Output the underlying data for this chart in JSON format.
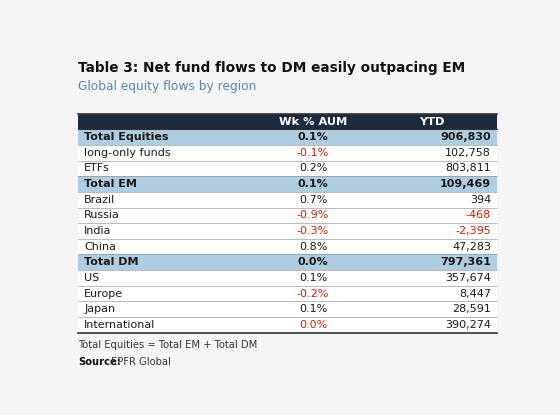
{
  "title_bold": "Table 3: ",
  "title_rest": "Net fund flows to DM easily outpacing EM",
  "subtitle": "Global equity flows by region",
  "footnote": "Total Equities = Total EM + Total DM",
  "source": "EPFR Global",
  "header": [
    "",
    "Wk % AUM",
    "YTD"
  ],
  "rows": [
    {
      "label": "Total Equities",
      "wk": "0.1%",
      "ytd": "906,830",
      "bold": true,
      "wk_red": false,
      "ytd_red": false,
      "intl_red": false
    },
    {
      "label": "long-only funds",
      "wk": "-0.1%",
      "ytd": "102,758",
      "bold": false,
      "wk_red": true,
      "ytd_red": false,
      "intl_red": false
    },
    {
      "label": "ETFs",
      "wk": "0.2%",
      "ytd": "803,811",
      "bold": false,
      "wk_red": false,
      "ytd_red": false,
      "intl_red": false
    },
    {
      "label": "Total EM",
      "wk": "0.1%",
      "ytd": "109,469",
      "bold": true,
      "wk_red": false,
      "ytd_red": false,
      "intl_red": false
    },
    {
      "label": "Brazil",
      "wk": "0.7%",
      "ytd": "394",
      "bold": false,
      "wk_red": false,
      "ytd_red": false,
      "intl_red": false
    },
    {
      "label": "Russia",
      "wk": "-0.9%",
      "ytd": "-468",
      "bold": false,
      "wk_red": true,
      "ytd_red": true,
      "intl_red": false
    },
    {
      "label": "India",
      "wk": "-0.3%",
      "ytd": "-2,395",
      "bold": false,
      "wk_red": true,
      "ytd_red": true,
      "intl_red": false
    },
    {
      "label": "China",
      "wk": "0.8%",
      "ytd": "47,283",
      "bold": false,
      "wk_red": false,
      "ytd_red": false,
      "intl_red": false
    },
    {
      "label": "Total DM",
      "wk": "0.0%",
      "ytd": "797,361",
      "bold": true,
      "wk_red": false,
      "ytd_red": false,
      "intl_red": false
    },
    {
      "label": "US",
      "wk": "0.1%",
      "ytd": "357,674",
      "bold": false,
      "wk_red": false,
      "ytd_red": false,
      "intl_red": false
    },
    {
      "label": "Europe",
      "wk": "-0.2%",
      "ytd": "8,447",
      "bold": false,
      "wk_red": true,
      "ytd_red": false,
      "intl_red": false
    },
    {
      "label": "Japan",
      "wk": "0.1%",
      "ytd": "28,591",
      "bold": false,
      "wk_red": false,
      "ytd_red": false,
      "intl_red": false
    },
    {
      "label": "International",
      "wk": "0.0%",
      "ytd": "390,274",
      "bold": false,
      "wk_red": true,
      "ytd_red": false,
      "intl_red": false
    }
  ],
  "header_bg": "#1b2a3c",
  "header_fg": "#ffffff",
  "bold_row_bg": "#aecde0",
  "normal_row_bg": "#ffffff",
  "bg_color": "#f5f5f5",
  "red_color": "#cc2200",
  "dark_text": "#1a1a1a",
  "subtitle_color": "#5588aa",
  "sep_line_color": "#888888",
  "bottom_line_color": "#333333"
}
